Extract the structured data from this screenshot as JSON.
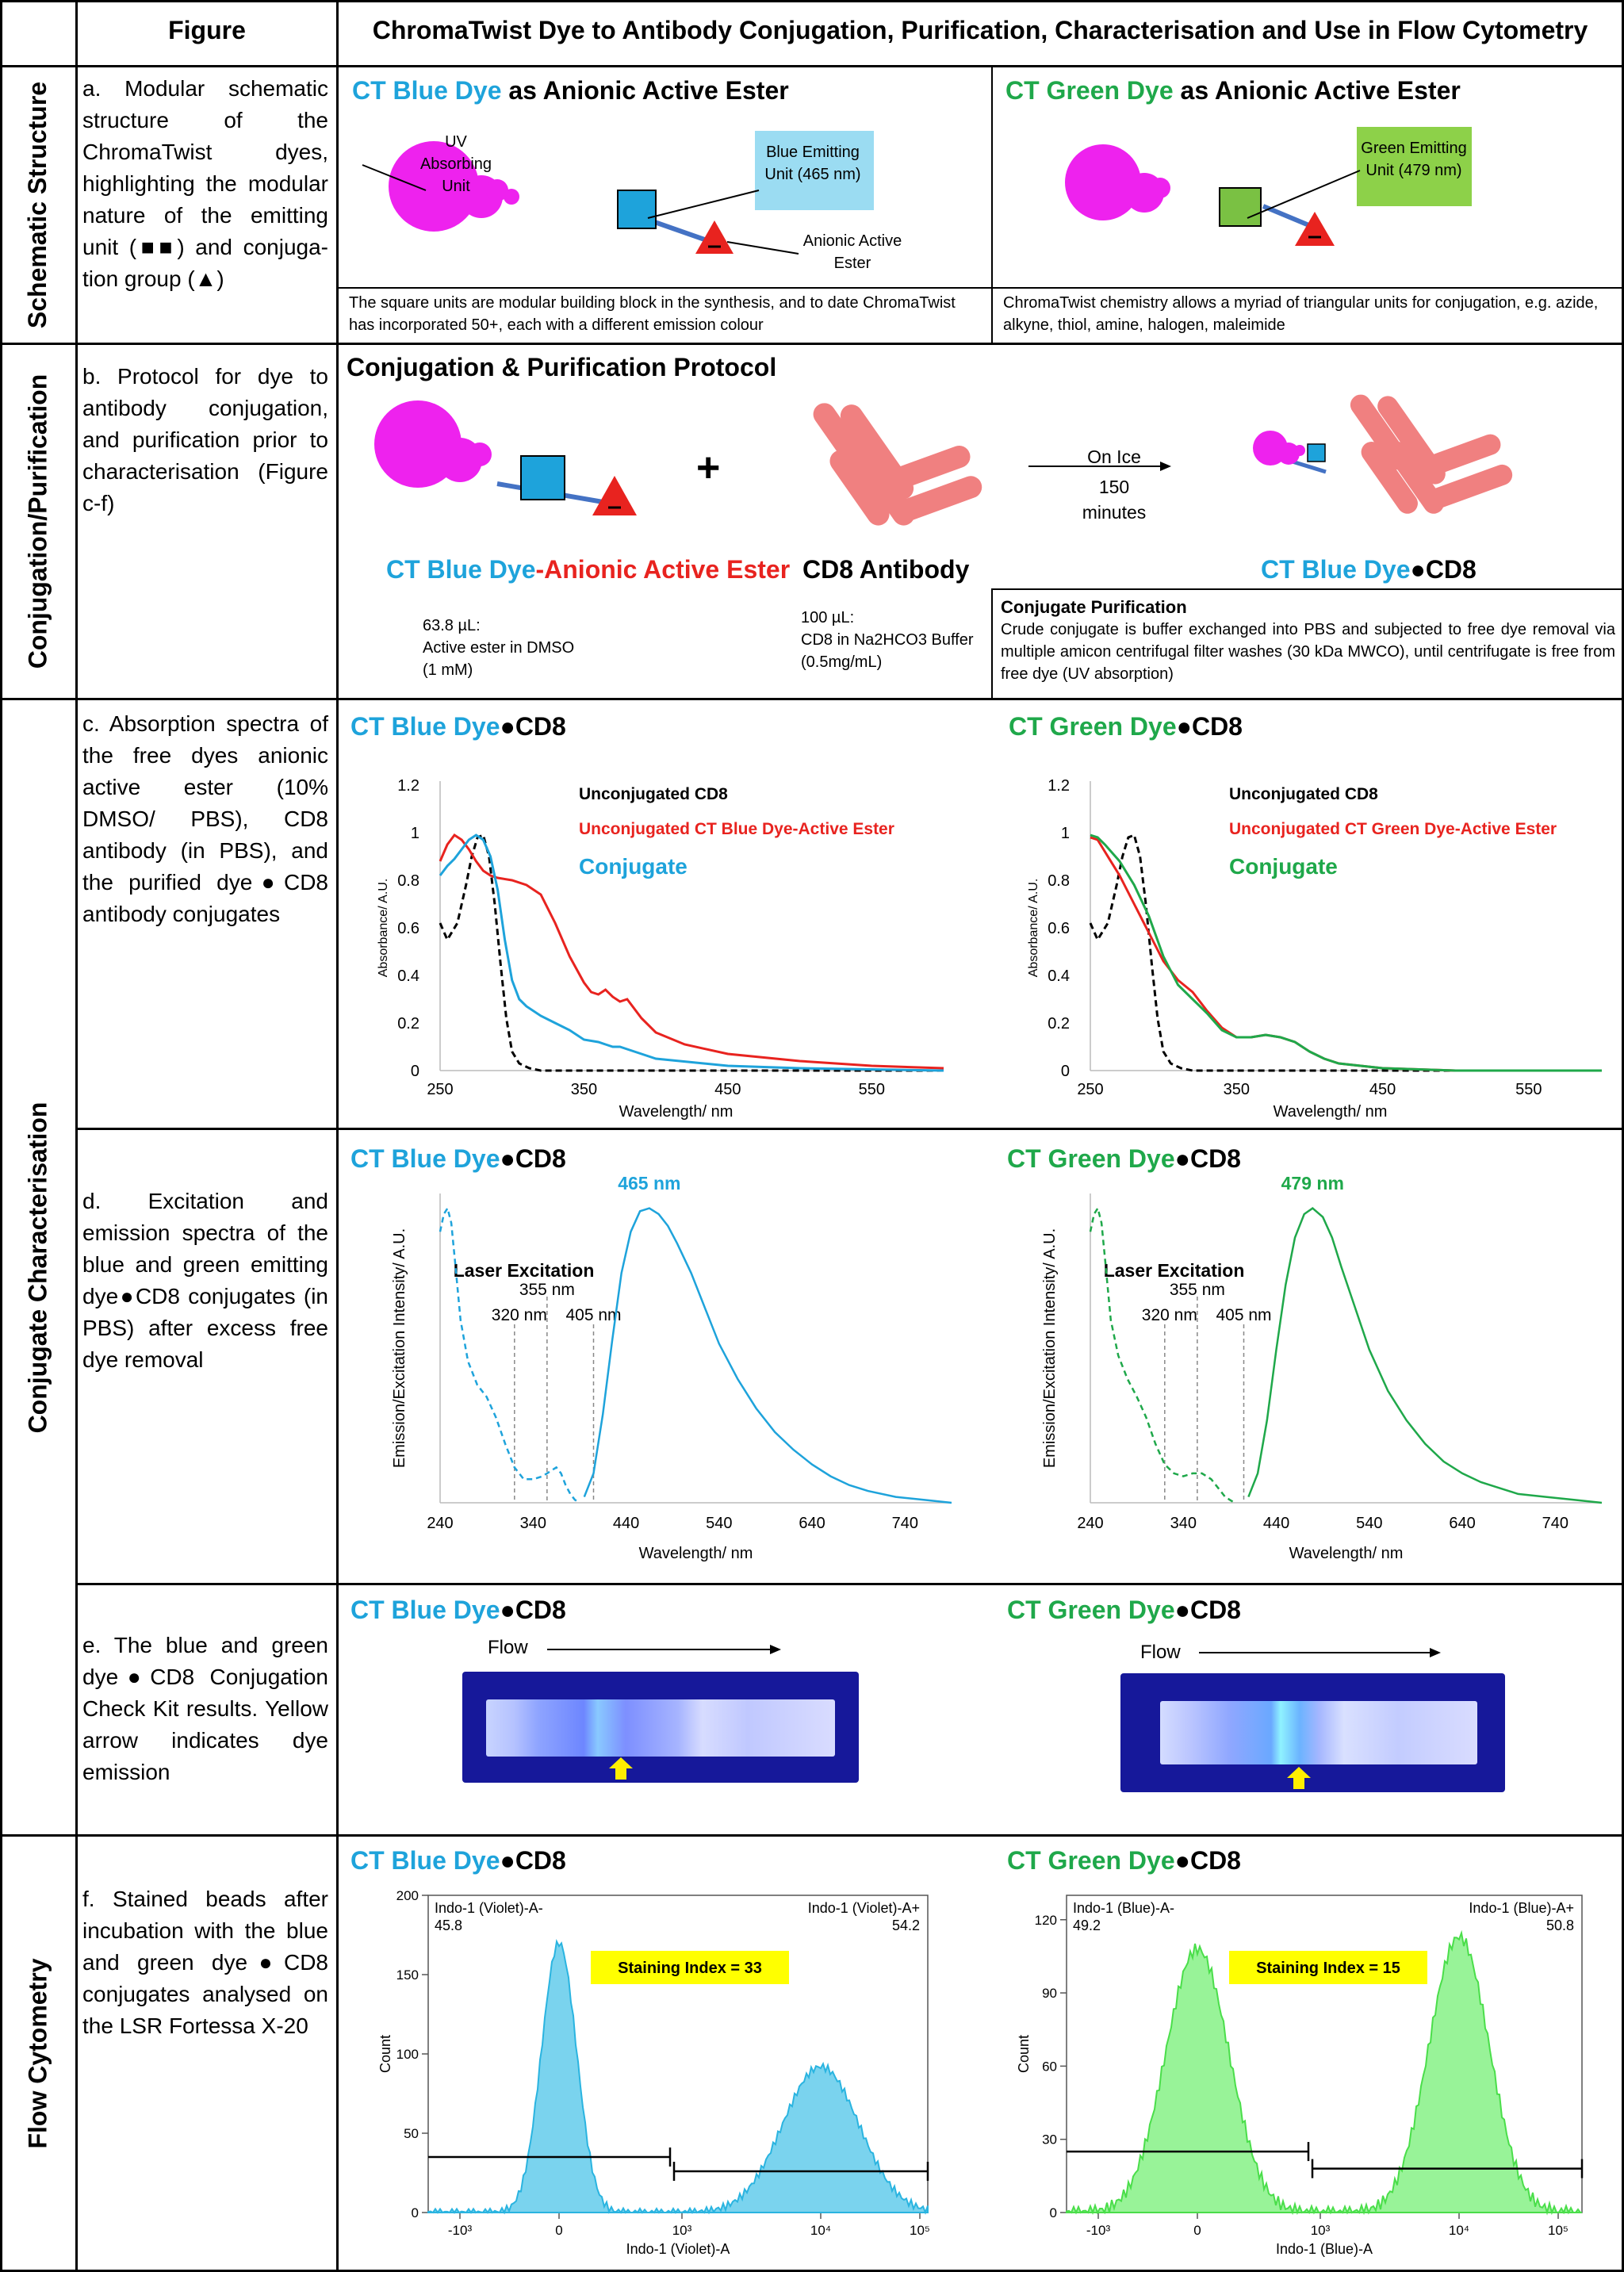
{
  "header": {
    "col_figure": "Figure",
    "col_title": "ChromaTwist Dye to Antibody Conjugation, Purification, Characterisation and Use in Flow Cytometry"
  },
  "sections": {
    "schematic": "Schematic Structure",
    "conjugation": "Conjugation/Purification",
    "characterisation": "Conjugate Characterisation",
    "flow": "Flow Cytometry"
  },
  "colors": {
    "blue_dye": "#1ea3db",
    "green_dye": "#1fa84a",
    "red": "#e8231f",
    "magenta": "#ee22ee",
    "antibody": "#f08080",
    "bead_blue": "#59c8ea",
    "bead_green": "#7ef07e"
  },
  "row_a": {
    "desc": "a. Modular schematic structure of the ChromaTwist dyes, highlighting the modular nature of the emitting unit (■■) and conjuga-tion group (▲)",
    "blue_title_dye": "CT Blue Dye",
    "blue_title_rest": " as Anionic Active Ester",
    "green_title_dye": "CT Green Dye",
    "green_title_rest": " as Anionic Active Ester",
    "uv_label": "UV Absorbing Unit",
    "blue_emit_label": "Blue Emitting Unit (465 nm)",
    "green_emit_label": "Green Emitting Unit (479 nm)",
    "anionic_label": "Anionic Active Ester",
    "blue_note": "The square units are modular building block in the synthesis, and to date ChromaTwist has incorporated 50+, each with a different emission colour",
    "green_note": "ChromaTwist chemistry allows a myriad of triangular units for conjugation, e.g. azide, alkyne, thiol, amine, halogen, maleimide"
  },
  "row_b": {
    "desc": "b. Protocol for dye to antibody conjugation, and purification prior to characterisation (Figure c-f)",
    "title": "Conjugation & Purification Protocol",
    "plus": "+",
    "arrow_top": "On Ice",
    "arrow_mid": "150",
    "arrow_bot": "minutes",
    "dye_label_blue": "CT Blue Dye",
    "dye_label_dash": "-",
    "dye_label_red": "Anionic Active Ester",
    "antibody_label": "CD8 Antibody",
    "product_blue": "CT Blue Dye",
    "product_dot": "●",
    "product_black": "CD8",
    "ester_note": [
      "63.8 µL:",
      "Active ester in DMSO",
      "(1 mM)"
    ],
    "cd8_note": [
      "100 µL:",
      "CD8 in Na2HCO3 Buffer",
      "(0.5mg/mL)"
    ],
    "purif_title": "Conjugate Purification",
    "purif_text": "Crude conjugate is buffer exchanged into PBS and subjected to free dye removal via multiple amicon centrifugal filter washes (30 kDa MWCO), until centrifugate is free from free dye (UV absorption)"
  },
  "row_c": {
    "desc": "c. Absorption spectra of the free dyes anionic active ester (10% DMSO/ PBS), CD8 antibody (in PBS), and the purified dye●CD8 antibody conjugates"
  },
  "row_d": {
    "desc": "d. Excitation and emission spectra of the blue and green emitting dye●CD8 conjugates (in PBS) after excess free dye removal"
  },
  "row_e": {
    "desc": "e. The blue and green dye●CD8 Conjugation Check Kit results. Yellow arrow indicates dye emission",
    "flow_label": "Flow"
  },
  "row_f": {
    "desc": "f. Stained beads after incubation with the blue and green dye●CD8 conjugates analysed on the LSR Fortessa X-20"
  },
  "panel_titles": {
    "blue_dye": "CT Blue Dye",
    "green_dye": "CT Green Dye",
    "dot": "●",
    "cd8": "CD8"
  },
  "chart_data": [
    {
      "type": "line",
      "panel": "c-blue",
      "xlabel": "Wavelength/ nm",
      "ylabel": "Absorbance/ A.U.",
      "xlim": [
        250,
        600
      ],
      "ylim": [
        0,
        1.2
      ],
      "xticks": [
        "250",
        "350",
        "450",
        "550"
      ],
      "yticks": [
        "0",
        "0.2",
        "0.4",
        "0.6",
        "0.8",
        "1",
        "1.2"
      ],
      "series": [
        {
          "name": "Unconjugated CD8",
          "color": "#000000",
          "dash": true,
          "x": [
            250,
            255,
            262,
            268,
            272,
            276,
            280,
            284,
            288,
            292,
            296,
            300,
            305,
            312,
            320,
            340,
            360,
            400,
            450,
            500,
            600
          ],
          "y": [
            0.62,
            0.55,
            0.62,
            0.78,
            0.9,
            0.98,
            0.99,
            0.9,
            0.7,
            0.45,
            0.22,
            0.08,
            0.03,
            0.01,
            0,
            0,
            0,
            0,
            0,
            0,
            0
          ]
        },
        {
          "name": "Unconjugated CT Blue Dye-Active Ester",
          "color": "#e8231f",
          "x": [
            250,
            255,
            260,
            265,
            270,
            275,
            280,
            285,
            290,
            300,
            310,
            320,
            330,
            340,
            350,
            355,
            360,
            365,
            370,
            375,
            380,
            390,
            400,
            420,
            450,
            500,
            550,
            600
          ],
          "y": [
            0.88,
            0.95,
            0.99,
            0.97,
            0.93,
            0.88,
            0.84,
            0.82,
            0.81,
            0.8,
            0.78,
            0.74,
            0.62,
            0.48,
            0.37,
            0.33,
            0.32,
            0.34,
            0.31,
            0.29,
            0.3,
            0.22,
            0.16,
            0.11,
            0.07,
            0.04,
            0.02,
            0.01
          ]
        },
        {
          "name": "Conjugate",
          "color": "#1ea3db",
          "x": [
            250,
            255,
            260,
            265,
            270,
            275,
            280,
            285,
            290,
            295,
            300,
            305,
            310,
            320,
            330,
            340,
            350,
            360,
            365,
            370,
            375,
            380,
            390,
            400,
            450,
            500,
            600
          ],
          "y": [
            0.82,
            0.86,
            0.89,
            0.93,
            0.97,
            0.99,
            0.97,
            0.9,
            0.76,
            0.55,
            0.38,
            0.3,
            0.27,
            0.23,
            0.2,
            0.17,
            0.13,
            0.12,
            0.11,
            0.1,
            0.1,
            0.09,
            0.07,
            0.05,
            0.02,
            0.01,
            0
          ]
        }
      ],
      "legend": [
        "Unconjugated CD8",
        "Unconjugated CT Blue Dye-Active Ester",
        "Conjugate"
      ]
    },
    {
      "type": "line",
      "panel": "c-green",
      "xlabel": "Wavelength/ nm",
      "ylabel": "Absorbance/ A.U.",
      "xlim": [
        250,
        600
      ],
      "ylim": [
        0,
        1.2
      ],
      "xticks": [
        "250",
        "350",
        "450",
        "550"
      ],
      "yticks": [
        "0",
        "0.2",
        "0.4",
        "0.6",
        "0.8",
        "1",
        "1.2"
      ],
      "series": [
        {
          "name": "Unconjugated CD8",
          "color": "#000000",
          "dash": true,
          "x": [
            250,
            255,
            262,
            268,
            272,
            276,
            280,
            284,
            288,
            292,
            296,
            300,
            305,
            312,
            320,
            340,
            360,
            400,
            450,
            500,
            600
          ],
          "y": [
            0.62,
            0.55,
            0.62,
            0.78,
            0.9,
            0.98,
            0.99,
            0.9,
            0.7,
            0.45,
            0.22,
            0.08,
            0.03,
            0.01,
            0,
            0,
            0,
            0,
            0,
            0,
            0
          ]
        },
        {
          "name": "Unconjugated CT Green Dye-Active Ester",
          "color": "#e8231f",
          "x": [
            250,
            255,
            260,
            270,
            280,
            290,
            300,
            310,
            320,
            330,
            340,
            350,
            360,
            370,
            380,
            390,
            400,
            410,
            420,
            450,
            500,
            600
          ],
          "y": [
            0.98,
            0.97,
            0.92,
            0.82,
            0.7,
            0.58,
            0.46,
            0.38,
            0.33,
            0.25,
            0.18,
            0.14,
            0.14,
            0.15,
            0.14,
            0.12,
            0.08,
            0.05,
            0.03,
            0.01,
            0,
            0
          ]
        },
        {
          "name": "Conjugate",
          "color": "#1fa84a",
          "x": [
            250,
            255,
            260,
            270,
            280,
            290,
            300,
            310,
            320,
            330,
            340,
            350,
            360,
            370,
            380,
            390,
            400,
            410,
            420,
            450,
            500,
            600
          ],
          "y": [
            0.99,
            0.98,
            0.95,
            0.88,
            0.78,
            0.65,
            0.48,
            0.36,
            0.3,
            0.24,
            0.17,
            0.14,
            0.14,
            0.15,
            0.14,
            0.12,
            0.08,
            0.05,
            0.03,
            0.01,
            0,
            0
          ]
        }
      ],
      "legend": [
        "Unconjugated CD8",
        "Unconjugated CT Green Dye-Active Ester",
        "Conjugate"
      ]
    },
    {
      "type": "line",
      "panel": "d-blue",
      "xlabel": "Wavelength/ nm",
      "ylabel": "Emission/Excitation Intensity/ A.U.",
      "xlim": [
        240,
        790
      ],
      "ylim": [
        0,
        1.05
      ],
      "xticks": [
        "240",
        "340",
        "440",
        "540",
        "640",
        "740"
      ],
      "peak_label": "465 nm",
      "laser_title": "Laser Excitation",
      "lasers": [
        "320 nm",
        "355 nm",
        "405 nm"
      ],
      "series": [
        {
          "name": "excitation",
          "color": "#1ea3db",
          "dash": true,
          "x": [
            240,
            244,
            248,
            252,
            256,
            262,
            270,
            280,
            290,
            300,
            310,
            320,
            330,
            340,
            350,
            355,
            360,
            365,
            370,
            375,
            380,
            385,
            390
          ],
          "y": [
            0.92,
            0.98,
            1.0,
            0.95,
            0.82,
            0.62,
            0.48,
            0.4,
            0.36,
            0.29,
            0.2,
            0.12,
            0.08,
            0.08,
            0.09,
            0.1,
            0.11,
            0.12,
            0.1,
            0.06,
            0.03,
            0.01,
            0
          ]
        },
        {
          "name": "emission",
          "color": "#1ea3db",
          "x": [
            395,
            405,
            415,
            425,
            435,
            445,
            455,
            465,
            475,
            485,
            495,
            510,
            525,
            540,
            560,
            580,
            600,
            620,
            640,
            660,
            680,
            700,
            730,
            760,
            790
          ],
          "y": [
            0.02,
            0.1,
            0.3,
            0.55,
            0.78,
            0.92,
            0.99,
            1.0,
            0.98,
            0.94,
            0.88,
            0.78,
            0.66,
            0.54,
            0.42,
            0.32,
            0.24,
            0.18,
            0.13,
            0.09,
            0.06,
            0.04,
            0.02,
            0.01,
            0
          ]
        }
      ]
    },
    {
      "type": "line",
      "panel": "d-green",
      "xlabel": "Wavelength/ nm",
      "ylabel": "Emission/Excitation Intensity/ A.U.",
      "xlim": [
        240,
        790
      ],
      "ylim": [
        0,
        1.05
      ],
      "xticks": [
        "240",
        "340",
        "440",
        "540",
        "640",
        "740"
      ],
      "peak_label": "479 nm",
      "laser_title": "Laser Excitation",
      "lasers": [
        "320 nm",
        "355 nm",
        "405 nm"
      ],
      "series": [
        {
          "name": "excitation",
          "color": "#1fa84a",
          "dash": true,
          "x": [
            240,
            244,
            248,
            252,
            256,
            262,
            270,
            280,
            290,
            300,
            310,
            320,
            330,
            340,
            350,
            360,
            370,
            375,
            380,
            385,
            390,
            395
          ],
          "y": [
            0.92,
            0.98,
            1.0,
            0.95,
            0.82,
            0.62,
            0.5,
            0.42,
            0.36,
            0.29,
            0.2,
            0.13,
            0.1,
            0.09,
            0.1,
            0.1,
            0.08,
            0.06,
            0.04,
            0.02,
            0.01,
            0
          ]
        },
        {
          "name": "emission",
          "color": "#1fa84a",
          "x": [
            410,
            420,
            430,
            440,
            450,
            460,
            470,
            479,
            490,
            500,
            510,
            525,
            540,
            560,
            580,
            600,
            620,
            640,
            660,
            680,
            700,
            730,
            760,
            790
          ],
          "y": [
            0.02,
            0.1,
            0.28,
            0.52,
            0.74,
            0.9,
            0.98,
            1.0,
            0.97,
            0.9,
            0.8,
            0.66,
            0.52,
            0.38,
            0.28,
            0.2,
            0.14,
            0.1,
            0.07,
            0.05,
            0.03,
            0.02,
            0.01,
            0
          ]
        }
      ]
    },
    {
      "type": "area",
      "panel": "f-blue",
      "xlabel": "Indo-1 (Violet)-A",
      "ylabel": "Count",
      "ylim": [
        0,
        200
      ],
      "yticks": [
        "0",
        "50",
        "100",
        "150",
        "200"
      ],
      "xticks": [
        "-10³",
        "0",
        "10³",
        "10⁴",
        "10⁵"
      ],
      "gate_neg_label": "Indo-1 (Violet)-A-",
      "gate_neg_value": "45.8",
      "gate_pos_label": "Indo-1 (Violet)-A+",
      "gate_pos_value": "54.2",
      "staining_index": "Staining Index = 33",
      "peaks": [
        {
          "x": "0",
          "count": 170
        },
        {
          "x": "10⁴",
          "count": 92
        }
      ]
    },
    {
      "type": "area",
      "panel": "f-green",
      "xlabel": "Indo-1 (Blue)-A",
      "ylabel": "Count",
      "ylim": [
        0,
        130
      ],
      "yticks": [
        "0",
        "30",
        "60",
        "90",
        "120"
      ],
      "xticks": [
        "-10³",
        "0",
        "10³",
        "10⁴",
        "10⁵"
      ],
      "gate_neg_label": "Indo-1 (Blue)-A-",
      "gate_neg_value": "49.2",
      "gate_pos_label": "Indo-1 (Blue)-A+",
      "gate_pos_value": "50.8",
      "staining_index": "Staining Index = 15",
      "peaks": [
        {
          "x": "0",
          "count": 108
        },
        {
          "x": "10⁴",
          "count": 113
        }
      ]
    }
  ]
}
